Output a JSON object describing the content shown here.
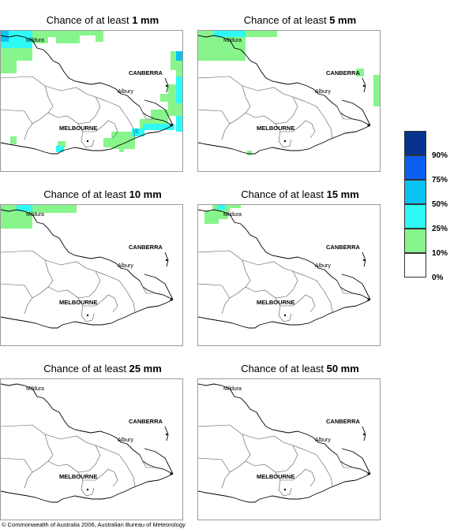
{
  "panels": [
    {
      "prefix": "Chance of at least",
      "threshold": "1 mm"
    },
    {
      "prefix": "Chance of at least",
      "threshold": "5 mm"
    },
    {
      "prefix": "Chance of at least",
      "threshold": "10 mm"
    },
    {
      "prefix": "Chance of at least",
      "threshold": "15 mm"
    },
    {
      "prefix": "Chance of at least",
      "threshold": "25 mm"
    },
    {
      "prefix": "Chance of at least",
      "threshold": "50 mm"
    }
  ],
  "places": {
    "mildura": "Mildura",
    "canberra": "CANBERRA",
    "albury": "Albury",
    "melbourne": "MELBOURNE"
  },
  "legend": {
    "labels": [
      "90%",
      "75%",
      "50%",
      "25%",
      "10%",
      "0%"
    ],
    "colors": [
      "#06338f",
      "#0b5ff0",
      "#08c4f2",
      "#2ef9f5",
      "#88f58c",
      "#ffffff"
    ]
  },
  "colors": {
    "border": "#000000",
    "frame": "#9a9a9a",
    "light_green": "#88f58c",
    "cyan": "#2ef9f5",
    "sky": "#08c4f2"
  },
  "footer": "© Commonwealth of Australia 2006, Australian Bureau of Meteorology"
}
